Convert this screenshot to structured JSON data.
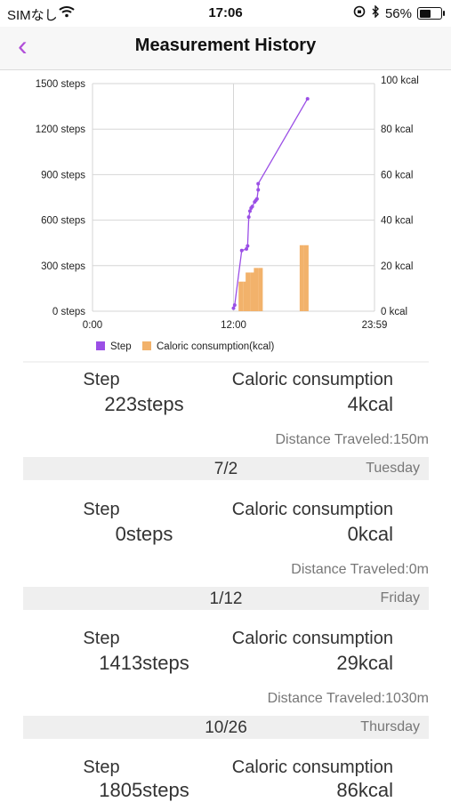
{
  "status_bar": {
    "carrier": "SIMなし",
    "time": "17:06",
    "battery_percent": "56%",
    "battery_level": 0.56
  },
  "nav": {
    "back_icon": "chevron-left-icon",
    "title": "Measurement History",
    "accent_color": "#b14fd8"
  },
  "chart_data": {
    "type": "line",
    "x_range": [
      "0:00",
      "23:59"
    ],
    "xticks": [
      "0:00",
      "12:00",
      "23:59"
    ],
    "y_left": {
      "ticks": [
        "0 steps",
        "300 steps",
        "600 steps",
        "900 steps",
        "1200 steps",
        "1500 steps"
      ],
      "range": [
        0,
        1500
      ]
    },
    "y_right": {
      "ticks": [
        "0 kcal",
        "20 kcal",
        "40 kcal",
        "60 kcal",
        "80 kcal",
        "100 kcal"
      ],
      "range": [
        0,
        100
      ]
    },
    "legend": [
      "Step",
      "Caloric consumption(kcal)"
    ],
    "colors": {
      "step": "#9b4fe6",
      "kcal": "#f2b26b",
      "grid": "#d6d6d6"
    },
    "series": [
      {
        "name": "Step",
        "kind": "line",
        "x_hours": [
          12.0,
          12.1,
          12.7,
          13.1,
          13.2,
          13.3,
          13.4,
          13.5,
          13.6,
          13.8,
          13.9,
          14.0,
          14.1,
          14.1,
          18.3
        ],
        "values": [
          20,
          40,
          400,
          410,
          430,
          620,
          660,
          680,
          690,
          720,
          730,
          740,
          800,
          840,
          1400
        ]
      },
      {
        "name": "Caloric consumption(kcal)",
        "kind": "bar",
        "x_hours": [
          13.0,
          13.6,
          14.3,
          18.2
        ],
        "values": [
          13,
          17,
          19,
          29
        ]
      }
    ]
  },
  "records_top": {
    "step_label": "Step",
    "step_value": "223steps",
    "cal_label": "Caloric consumption",
    "cal_value": "4kcal",
    "distance": "Distance Traveled:150m"
  },
  "days": [
    {
      "date": "7/2",
      "weekday": "Tuesday",
      "step_label": "Step",
      "step_value": "0steps",
      "cal_label": "Caloric consumption",
      "cal_value": "0kcal",
      "distance": "Distance Traveled:0m"
    },
    {
      "date": "1/12",
      "weekday": "Friday",
      "step_label": "Step",
      "step_value": "1413steps",
      "cal_label": "Caloric consumption",
      "cal_value": "29kcal",
      "distance": "Distance Traveled:1030m"
    },
    {
      "date": "10/26",
      "weekday": "Thursday",
      "step_label": "Step",
      "step_value": "1805steps",
      "cal_label": "Caloric consumption",
      "cal_value": "86kcal"
    }
  ]
}
